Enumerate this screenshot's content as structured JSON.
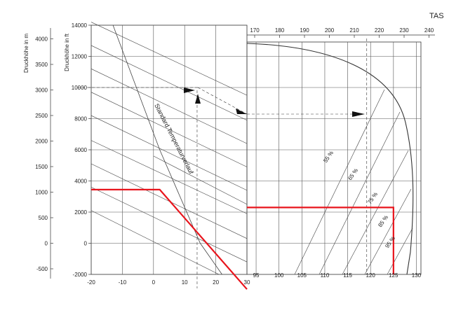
{
  "chart_data": [
    {
      "type": "line",
      "panel": "left",
      "ylabel_m": "Druckhöhe in m",
      "ylabel_ft": "Druckhöhe in ft",
      "x_ticks": [
        "-20",
        "-10",
        "0",
        "10",
        "20",
        "30"
      ],
      "xlim": [
        -20,
        30
      ],
      "y_ft_ticks": [
        "-2000",
        "0",
        "2000",
        "4000",
        "6000",
        "8000",
        "10000",
        "12000",
        "14000"
      ],
      "ylim_ft": [
        -2000,
        14000
      ],
      "y_m_ticks": [
        "-500",
        "0",
        "500",
        "1000",
        "1500",
        "2000",
        "2500",
        "3000",
        "3500",
        "4000"
      ],
      "ylim_m": [
        -609.6,
        4267.2
      ],
      "grid": true,
      "series": [
        {
          "name": "Standard Temperaturverlauf",
          "x": [
            -13,
            2,
            15,
            22
          ],
          "y": [
            14000,
            6000,
            0,
            -2000
          ]
        }
      ],
      "guides": [
        {
          "x": [
            0,
            30
          ],
          "y": [
            5600,
            2500
          ]
        },
        {
          "x": [
            -20,
            30
          ],
          "y": [
            14200,
            9500
          ]
        },
        {
          "x": [
            -20,
            30
          ],
          "y": [
            12700,
            7900
          ]
        },
        {
          "x": [
            -20,
            30
          ],
          "y": [
            11200,
            6400
          ]
        },
        {
          "x": [
            -20,
            30
          ],
          "y": [
            9700,
            4900
          ]
        },
        {
          "x": [
            -20,
            30
          ],
          "y": [
            8200,
            3400
          ]
        },
        {
          "x": [
            -20,
            30
          ],
          "y": [
            6600,
            1900
          ]
        },
        {
          "x": [
            -20,
            30
          ],
          "y": [
            5100,
            300
          ]
        },
        {
          "x": [
            -20,
            30
          ],
          "y": [
            3600,
            -1200
          ]
        },
        {
          "x": [
            -20,
            21
          ],
          "y": [
            2100,
            -2000
          ]
        }
      ],
      "worked_example": {
        "x": [
          -20,
          2,
          30
        ],
        "y": [
          1050,
          1050,
          -900
        ],
        "unit": "m",
        "color": "#e8141c"
      },
      "dashed_projection": {
        "temperature": 14,
        "pressure_altitude_ft": 10000
      }
    },
    {
      "type": "line",
      "panel": "right",
      "title": "TAS",
      "x_top_ticks": [
        "170",
        "180",
        "190",
        "200",
        "210",
        "220",
        "230",
        "240"
      ],
      "x_bottom_ticks": [
        "95",
        "100",
        "105",
        "110",
        "115",
        "120",
        "125",
        "130"
      ],
      "xlim": [
        93,
        131
      ],
      "grid": true,
      "percent_labels": [
        "55 %",
        "65 %",
        "75 %",
        "85 %",
        "95 %"
      ],
      "worked_example": {
        "x": [
          93,
          125,
          125
        ],
        "y": [
          700,
          700,
          -600
        ],
        "unit": "m",
        "color": "#e8141c"
      },
      "dashed_projection": {
        "tas": 215
      }
    }
  ]
}
